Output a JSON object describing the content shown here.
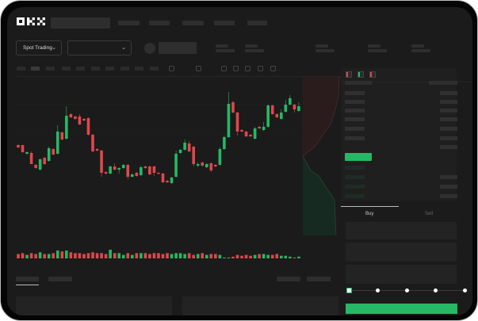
{
  "header": {
    "logo": "OKX"
  },
  "market_selector": {
    "label": "Spot Trading",
    "pair_value": ""
  },
  "orderbook": {
    "views": [
      "both-sides-icon",
      "bids-only-icon",
      "asks-only-icon"
    ]
  },
  "trade_panel": {
    "tabs": [
      "Buy",
      "Sell"
    ],
    "active_tab": "Buy",
    "slider_percent": 0,
    "slider_steps": [
      0,
      25,
      50,
      75,
      100
    ]
  },
  "colors": {
    "up": "#26b864",
    "down": "#e0474c",
    "background": "#1b1b1b",
    "accent": "#26b864"
  },
  "chart_data": {
    "type": "candlestick",
    "title": "",
    "xlabel": "",
    "ylabel": "",
    "grid": true,
    "candles": [
      [
        118,
        115,
        119,
        114
      ],
      [
        118,
        109,
        118,
        108
      ],
      [
        107,
        109,
        110,
        106
      ],
      [
        108,
        94,
        110,
        94
      ],
      [
        93,
        89,
        94,
        88
      ],
      [
        87,
        100,
        101,
        86
      ],
      [
        102,
        94,
        103,
        93
      ],
      [
        98,
        114,
        116,
        97
      ],
      [
        113,
        106,
        114,
        105
      ],
      [
        107,
        135,
        143,
        106
      ],
      [
        134,
        125,
        135,
        124
      ],
      [
        126,
        155,
        167,
        125
      ],
      [
        157,
        153,
        158,
        152
      ],
      [
        154,
        151,
        155,
        150
      ],
      [
        154,
        144,
        157,
        143
      ],
      [
        151,
        149,
        152,
        148
      ],
      [
        152,
        131,
        153,
        130
      ],
      [
        131,
        110,
        132,
        109
      ],
      [
        113,
        111,
        114,
        110
      ],
      [
        111,
        83,
        112,
        78
      ],
      [
        84,
        82,
        85,
        81
      ],
      [
        82,
        91,
        92,
        81
      ],
      [
        91,
        87,
        95,
        86
      ],
      [
        87,
        89,
        90,
        82
      ],
      [
        89,
        93,
        94,
        88
      ],
      [
        93,
        78,
        94,
        75
      ],
      [
        78,
        81,
        82,
        77
      ],
      [
        83,
        79,
        84,
        78
      ],
      [
        80,
        90,
        92,
        79
      ],
      [
        91,
        89,
        92,
        88
      ],
      [
        91,
        81,
        92,
        80
      ],
      [
        91,
        83,
        92,
        79
      ],
      [
        83,
        82,
        84,
        81
      ],
      [
        82,
        71,
        83,
        70
      ],
      [
        73,
        71,
        74,
        70
      ],
      [
        70,
        77,
        78,
        69
      ],
      [
        78,
        107,
        111,
        77
      ],
      [
        108,
        112,
        113,
        107
      ],
      [
        112,
        121,
        125,
        111
      ],
      [
        120,
        110,
        123,
        109
      ],
      [
        116,
        94,
        117,
        91
      ],
      [
        92,
        94,
        96,
        90
      ],
      [
        96,
        92,
        97,
        91
      ],
      [
        90,
        94,
        95,
        89
      ],
      [
        95,
        86,
        96,
        84
      ],
      [
        93,
        91,
        94,
        90
      ],
      [
        93,
        113,
        115,
        92
      ],
      [
        113,
        128,
        130,
        112
      ],
      [
        128,
        170,
        185,
        127
      ],
      [
        172,
        159,
        174,
        158
      ],
      [
        159,
        135,
        160,
        130
      ],
      [
        137,
        135,
        138,
        134
      ],
      [
        135,
        129,
        136,
        128
      ],
      [
        131,
        129,
        132,
        128
      ],
      [
        126,
        139,
        141,
        125
      ],
      [
        141,
        139,
        142,
        138
      ],
      [
        137,
        141,
        147,
        136
      ],
      [
        141,
        168,
        169,
        140
      ],
      [
        168,
        157,
        169,
        156
      ],
      [
        157,
        153,
        158,
        152
      ],
      [
        151,
        159,
        163,
        150
      ],
      [
        160,
        169,
        175,
        159
      ],
      [
        169,
        177,
        181,
        168
      ],
      [
        169,
        163,
        170,
        159
      ],
      [
        161,
        167,
        172,
        160
      ]
    ],
    "volume": [
      5,
      6,
      4,
      6,
      5,
      7,
      5,
      5,
      6,
      9,
      8,
      9,
      7,
      6,
      6,
      5,
      6,
      7,
      6,
      6,
      5,
      10,
      6,
      6,
      4,
      6,
      4,
      6,
      6,
      6,
      5,
      6,
      6,
      5,
      6,
      5,
      6,
      6,
      5,
      6,
      4,
      5,
      6,
      4,
      5,
      5,
      4,
      1,
      1,
      2,
      4,
      3,
      4,
      3,
      4,
      5,
      5,
      4,
      4,
      5,
      3,
      3,
      2,
      1,
      2
    ]
  }
}
